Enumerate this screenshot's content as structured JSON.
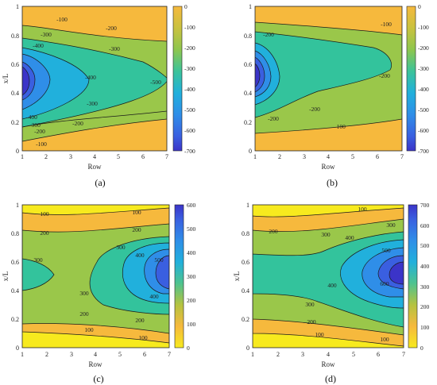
{
  "chart_data": [
    {
      "type": "contour",
      "panel_label": "(a)",
      "xlabel": "Row",
      "ylabel": "x/L",
      "xlim": [
        1,
        7
      ],
      "ylim": [
        0,
        1
      ],
      "x_ticks": [
        "1",
        "2",
        "3",
        "4",
        "5",
        "6",
        "7"
      ],
      "y_ticks": [
        "0",
        "0.2",
        "0.4",
        "0.6",
        "0.8",
        "1"
      ],
      "colorbar": {
        "min": -700,
        "max": 0,
        "ticks": [
          "0",
          "-100",
          "-200",
          "-300",
          "-400",
          "-500",
          "-600",
          "-700"
        ]
      },
      "contour_labels": [
        "-100",
        "-200",
        "-300",
        "-300",
        "-400",
        "-500",
        "-400",
        "-300",
        "-200",
        "-100",
        "-200",
        "-300",
        "-400"
      ],
      "colors": [
        "#3b34c8",
        "#3a5fe0",
        "#2f8ee8",
        "#21b0dc",
        "#33c39c",
        "#9ac74a",
        "#f6b93d"
      ]
    },
    {
      "type": "contour",
      "panel_label": "(b)",
      "xlabel": "Row",
      "ylabel": "",
      "xlim": [
        1,
        7
      ],
      "ylim": [
        0,
        1
      ],
      "x_ticks": [
        "1",
        "2",
        "3",
        "4",
        "5",
        "6",
        "7"
      ],
      "y_ticks": [
        "0",
        "0.2",
        "0.4",
        "0.6",
        "0.8",
        "1"
      ],
      "colorbar": {
        "min": -700,
        "max": 0,
        "ticks": [
          "0",
          "-100",
          "-200",
          "-300",
          "-400",
          "-500",
          "-600",
          "-700"
        ]
      },
      "contour_labels": [
        "-100",
        "-200",
        "-200",
        "-200",
        "-100",
        "-200"
      ],
      "colors": [
        "#3b34c8",
        "#3a5fe0",
        "#2f8ee8",
        "#21b0dc",
        "#33c39c",
        "#9ac74a",
        "#f6b93d"
      ]
    },
    {
      "type": "contour",
      "panel_label": "(c)",
      "xlabel": "Row",
      "ylabel": "x/L",
      "xlim": [
        1,
        7
      ],
      "ylim": [
        0,
        1
      ],
      "x_ticks": [
        "1",
        "2",
        "3",
        "4",
        "5",
        "6",
        "7"
      ],
      "y_ticks": [
        "0",
        "0.2",
        "0.4",
        "0.6",
        "0.8",
        "1"
      ],
      "colorbar": {
        "min": 0,
        "max": 600,
        "ticks": [
          "600",
          "500",
          "400",
          "300",
          "200",
          "100",
          "0"
        ]
      },
      "contour_labels": [
        "100",
        "100",
        "200",
        "200",
        "300",
        "300",
        "400",
        "500",
        "400",
        "300",
        "200",
        "200",
        "100",
        "100"
      ],
      "colors": [
        "#f7ea1e",
        "#f6b93d",
        "#9ac74a",
        "#33c39c",
        "#21b0dc",
        "#2f8ee8",
        "#3a5fe0",
        "#3b34c8"
      ]
    },
    {
      "type": "contour",
      "panel_label": "(d)",
      "xlabel": "Row",
      "ylabel": "x/L",
      "xlim": [
        1,
        7
      ],
      "ylim": [
        0,
        1
      ],
      "x_ticks": [
        "1",
        "2",
        "3",
        "4",
        "5",
        "6",
        "7"
      ],
      "y_ticks": [
        "0",
        "0.2",
        "0.4",
        "0.6",
        "0.8",
        "1"
      ],
      "colorbar": {
        "min": 0,
        "max": 700,
        "ticks": [
          "700",
          "600",
          "500",
          "400",
          "300",
          "200",
          "100",
          "0"
        ]
      },
      "contour_labels": [
        "100",
        "200",
        "300",
        "300",
        "400",
        "500",
        "600",
        "400",
        "300",
        "200",
        "100",
        "100"
      ],
      "colors": [
        "#f7ea1e",
        "#f6b93d",
        "#9ac74a",
        "#33c39c",
        "#21b0dc",
        "#2f8ee8",
        "#3a5fe0",
        "#3b34c8"
      ]
    }
  ]
}
